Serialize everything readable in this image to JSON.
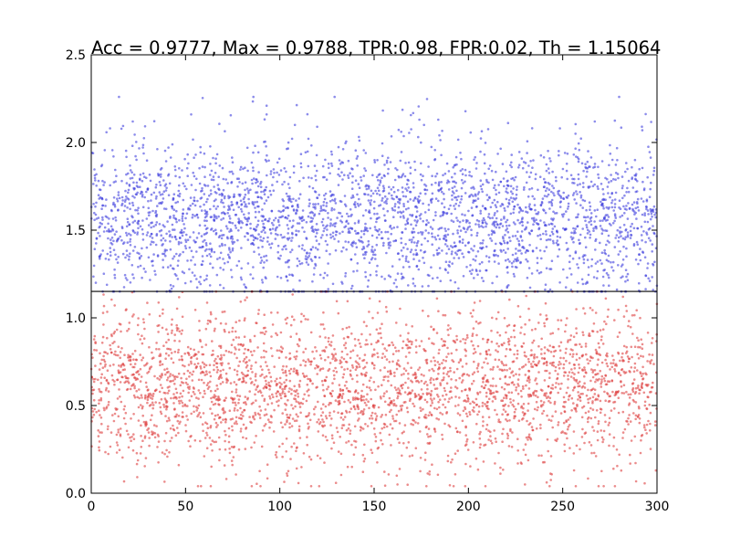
{
  "chart_data": {
    "type": "scatter",
    "title": "Acc = 0.9777, Max = 0.9788, TPR:0.98, FPR:0.02, Th = 1.15064",
    "xlabel": "",
    "ylabel": "",
    "xlim": [
      0,
      300
    ],
    "ylim": [
      0.0,
      2.5
    ],
    "xticks": [
      0,
      50,
      100,
      150,
      200,
      250,
      300
    ],
    "xtick_labels": [
      "0",
      "50",
      "100",
      "150",
      "200",
      "250",
      "300"
    ],
    "yticks": [
      0.0,
      0.5,
      1.0,
      1.5,
      2.0,
      2.5
    ],
    "ytick_labels": [
      "0.0",
      "0.5",
      "1.0",
      "1.5",
      "2.0",
      "2.5"
    ],
    "grid": false,
    "threshold_line": {
      "y": 1.15064,
      "color": "#000000"
    },
    "series": [
      {
        "color": "#4040dd",
        "points_per_x": 10,
        "x_range": [
          0,
          300
        ],
        "y_mean": 1.57,
        "y_min": 1.15,
        "y_max": 2.26,
        "notable_points": [
          [
            86,
            2.26
          ],
          [
            93,
            2.21
          ],
          [
            93,
            2.16
          ],
          [
            53,
            2.16
          ],
          [
            108,
            2.1
          ],
          [
            267,
            2.12
          ],
          [
            22,
            2.12
          ],
          [
            184,
            2.13
          ],
          [
            174,
            2.13
          ],
          [
            292,
            2.09
          ]
        ]
      },
      {
        "color": "#dd4040",
        "points_per_x": 10,
        "x_range": [
          0,
          300
        ],
        "y_mean": 0.6,
        "y_min": 0.04,
        "y_max": 1.15,
        "notable_points": [
          [
            230,
            0.05
          ],
          [
            162,
            0.1
          ],
          [
            256,
            0.13
          ],
          [
            104,
            0.1
          ],
          [
            29,
            0.2
          ],
          [
            136,
            0.15
          ],
          [
            208,
            0.18
          ],
          [
            280,
            0.22
          ]
        ]
      }
    ]
  }
}
